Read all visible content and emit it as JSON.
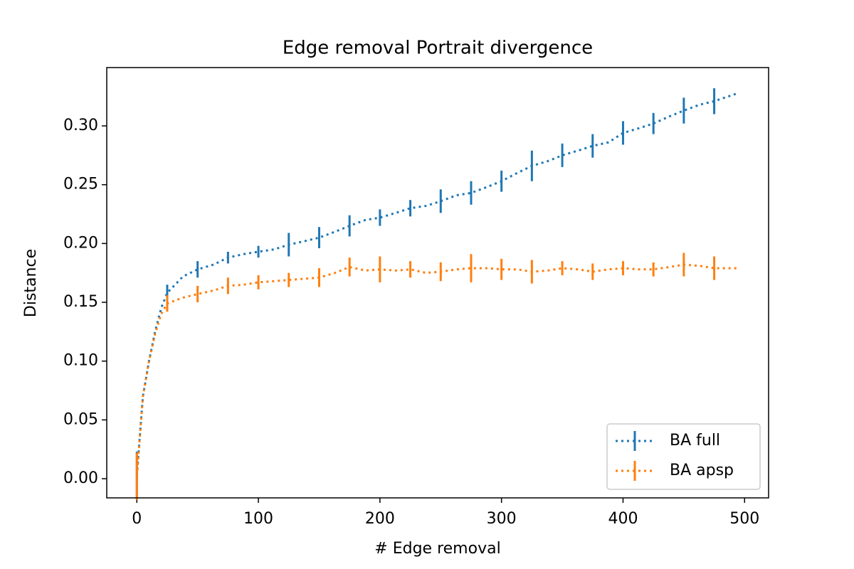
{
  "chart_data": {
    "type": "line",
    "title": "Edge removal Portrait divergence",
    "x_label": "# Edge removal",
    "y_label": "Distance",
    "x": [
      0,
      5,
      10,
      15,
      20,
      25,
      38,
      50,
      63,
      75,
      88,
      100,
      113,
      125,
      138,
      150,
      163,
      175,
      188,
      200,
      213,
      225,
      238,
      250,
      263,
      275,
      288,
      300,
      313,
      325,
      338,
      350,
      363,
      375,
      388,
      400,
      413,
      425,
      438,
      450,
      463,
      475,
      495
    ],
    "series": [
      {
        "name": "BA full",
        "color": "#1f77b4",
        "values": [
          0.003,
          0.07,
          0.1,
          0.125,
          0.145,
          0.158,
          0.172,
          0.178,
          0.182,
          0.188,
          0.191,
          0.193,
          0.195,
          0.199,
          0.202,
          0.205,
          0.21,
          0.215,
          0.22,
          0.222,
          0.226,
          0.23,
          0.232,
          0.236,
          0.241,
          0.243,
          0.248,
          0.253,
          0.26,
          0.266,
          0.27,
          0.275,
          0.279,
          0.283,
          0.286,
          0.294,
          0.298,
          0.302,
          0.308,
          0.313,
          0.318,
          0.321,
          0.328
        ],
        "errors": [
          0.02,
          null,
          null,
          null,
          null,
          0.007,
          null,
          0.007,
          null,
          0.005,
          null,
          0.005,
          null,
          0.01,
          null,
          0.009,
          null,
          0.009,
          null,
          0.007,
          null,
          0.007,
          null,
          0.01,
          null,
          0.01,
          null,
          0.009,
          null,
          0.013,
          null,
          0.01,
          null,
          0.01,
          null,
          0.01,
          null,
          0.009,
          null,
          0.011,
          null,
          0.011,
          null
        ]
      },
      {
        "name": "BA apsp",
        "color": "#ff7f0e",
        "values": [
          0.002,
          0.07,
          0.1,
          0.123,
          0.14,
          0.149,
          0.154,
          0.157,
          0.16,
          0.164,
          0.165,
          0.167,
          0.168,
          0.169,
          0.17,
          0.171,
          0.175,
          0.18,
          0.177,
          0.178,
          0.177,
          0.178,
          0.175,
          0.176,
          0.178,
          0.179,
          0.179,
          0.178,
          0.178,
          0.176,
          0.177,
          0.179,
          0.178,
          0.176,
          0.178,
          0.179,
          0.178,
          0.178,
          0.18,
          0.182,
          0.181,
          0.179,
          0.179
        ],
        "errors": [
          0.02,
          null,
          null,
          null,
          null,
          0.007,
          null,
          0.007,
          null,
          0.007,
          null,
          0.006,
          null,
          0.006,
          null,
          0.008,
          null,
          0.008,
          null,
          0.011,
          null,
          0.007,
          null,
          0.008,
          null,
          0.012,
          null,
          0.009,
          null,
          0.01,
          null,
          0.006,
          null,
          0.007,
          null,
          0.006,
          null,
          0.006,
          null,
          0.01,
          null,
          0.01,
          null
        ]
      }
    ],
    "xlim": [
      -24.75,
      519.75
    ],
    "xticks": [
      0,
      100,
      200,
      300,
      400,
      500
    ],
    "ylim": [
      -0.0163,
      0.3496
    ],
    "yticks": [
      {
        "value": 0,
        "label": "0.00"
      },
      0.05,
      {
        "value": 0.1,
        "label": "0.10"
      },
      0.15,
      {
        "value": 0.2,
        "label": "0.20"
      },
      0.25,
      {
        "value": 0.3,
        "label": "0.30"
      }
    ],
    "legend": "lower right",
    "grid": false
  }
}
